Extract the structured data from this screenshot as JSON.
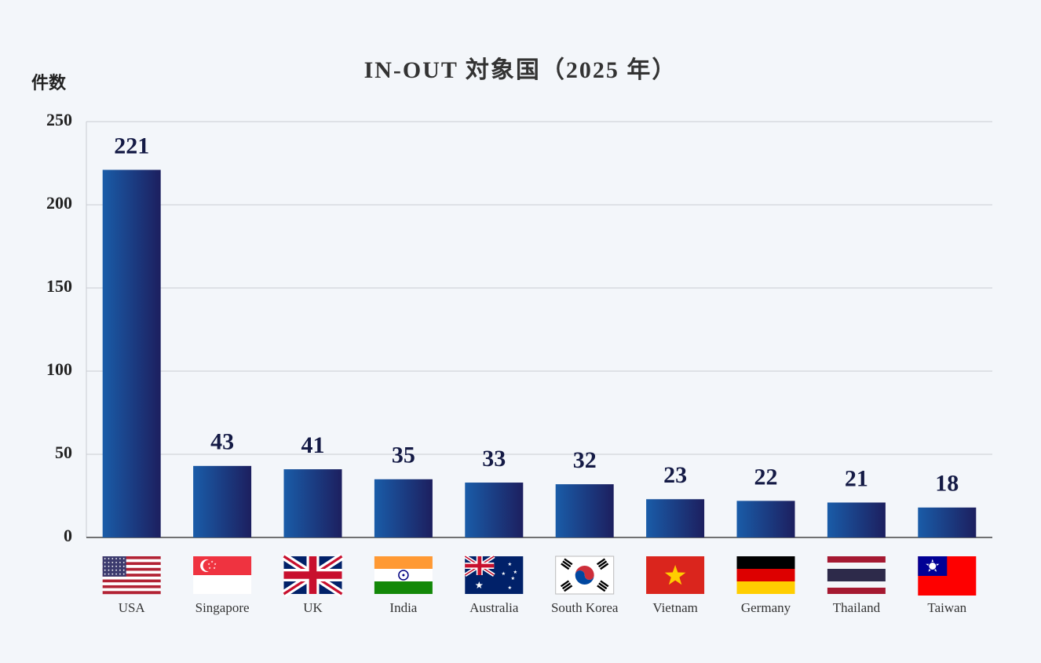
{
  "chart_data": {
    "type": "bar",
    "title": "IN-OUT 対象国（2025 年）",
    "y_label": "件数",
    "categories": [
      "USA",
      "Singapore",
      "UK",
      "India",
      "Australia",
      "South Korea",
      "Vietnam",
      "Germany",
      "Thailand",
      "Taiwan"
    ],
    "values": [
      221,
      43,
      41,
      35,
      33,
      32,
      23,
      22,
      21,
      18
    ],
    "colors": [
      "#1a5ca8",
      "#1c1f5f"
    ],
    "ylim": [
      0,
      250
    ],
    "yticks": [
      0,
      50,
      100,
      150,
      200,
      250
    ],
    "grid": true
  }
}
